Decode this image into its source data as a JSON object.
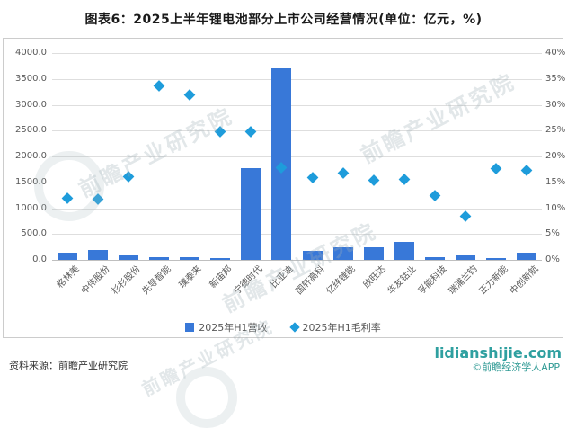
{
  "title": "图表6：2025上半年锂电池部分上市公司经营情况(单位：亿元，%)",
  "colors": {
    "bar": "#3878D8",
    "point": "#1E9CDB",
    "grid": "#dedede",
    "axis_text": "#595959",
    "brand_teal": "#2FA0A0"
  },
  "legend": {
    "revenue_label": "2025年H1营收",
    "margin_label": "2025年H1毛利率"
  },
  "axes": {
    "left_ticks": [
      "4000.0",
      "3500.0",
      "3000.0",
      "2500.0",
      "2000.0",
      "1500.0",
      "1000.0",
      "500.0",
      "0.0"
    ],
    "right_ticks": [
      "40%",
      "35%",
      "30%",
      "25%",
      "20%",
      "15%",
      "10%",
      "5%",
      "0%"
    ]
  },
  "watermark": {
    "text": "前瞻产业研究院"
  },
  "footer": {
    "source": "资料来源：前瞻产业研究院",
    "site": "lidianshijie.com",
    "brand": "©前瞻经济学人APP"
  },
  "chart_data": {
    "type": "bar",
    "combo": "bar + scatter (dual axis)",
    "title": "图表6：2025上半年锂电池部分上市公司经营情况(单位：亿元，%)",
    "categories": [
      "格林美",
      "中伟股份",
      "杉杉股份",
      "先导智能",
      "璞泰来",
      "新宙邦",
      "宁德时代",
      "比亚迪",
      "国轩高科",
      "亿纬锂能",
      "欣旺达",
      "华友钴业",
      "孚能科技",
      "瑞浦兰钧",
      "正力新能",
      "中创新航"
    ],
    "series": [
      {
        "name": "2025年H1营收",
        "type": "bar",
        "axis": "left",
        "unit": "亿元",
        "values": [
          145,
          195,
          95,
          55,
          55,
          40,
          1770,
          3710,
          170,
          240,
          245,
          355,
          45,
          85,
          25,
          140
        ]
      },
      {
        "name": "2025年H1毛利率",
        "type": "scatter",
        "axis": "right",
        "unit": "%",
        "values": [
          12,
          11.7,
          16.1,
          33.7,
          31.9,
          24.8,
          24.8,
          17.8,
          15.9,
          16.8,
          15.4,
          15.6,
          12.5,
          8.4,
          17.6,
          17.3
        ]
      }
    ],
    "left_axis": {
      "range": [
        0,
        4000
      ],
      "tick_step": 500,
      "unit": "亿元"
    },
    "right_axis": {
      "range": [
        0,
        40
      ],
      "tick_step": 5,
      "unit": "%"
    },
    "grid": true,
    "legend_position": "bottom"
  }
}
